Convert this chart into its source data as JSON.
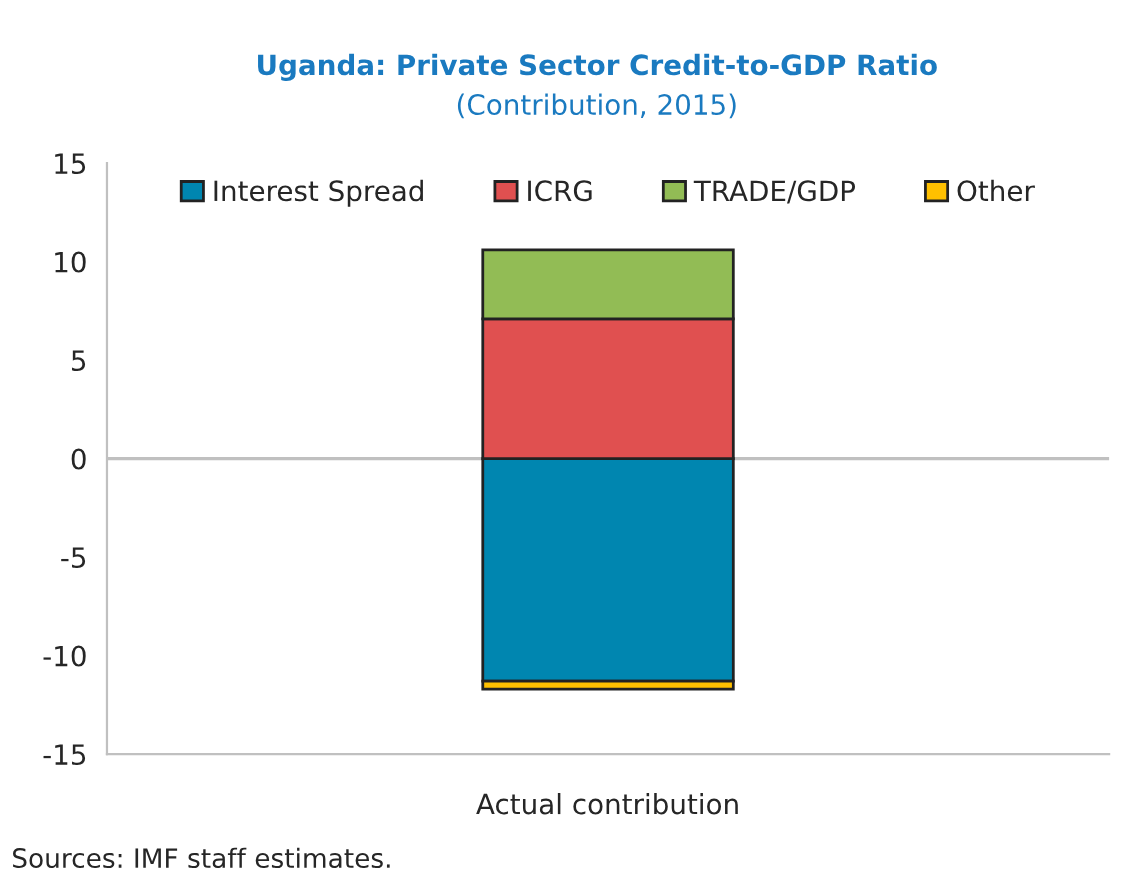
{
  "chart_data": {
    "type": "bar",
    "title": "Uganda: Private Sector Credit-to-GDP Ratio",
    "subtitle": "(Contribution, 2015)",
    "categories": [
      "Actual contribution"
    ],
    "stacked": true,
    "series": [
      {
        "name": "Interest Spread",
        "color": "#0086b0",
        "values": [
          -11.3
        ]
      },
      {
        "name": "ICRG",
        "color": "#e05050",
        "values": [
          7.1
        ]
      },
      {
        "name": "TRADE/GDP",
        "color": "#92bc55",
        "values": [
          3.5
        ]
      },
      {
        "name": "Other",
        "color": "#ffc000",
        "values": [
          -0.4
        ]
      }
    ],
    "ylim": [
      -15,
      15
    ],
    "yticks": [
      -15,
      -10,
      -5,
      0,
      5,
      10,
      15
    ],
    "ref_lines": [
      {
        "axis": "y",
        "value": 0,
        "color": "#c0c0c0"
      }
    ],
    "legend": "top",
    "grid": false,
    "annotations": [
      "Sources: IMF staff estimates."
    ]
  }
}
